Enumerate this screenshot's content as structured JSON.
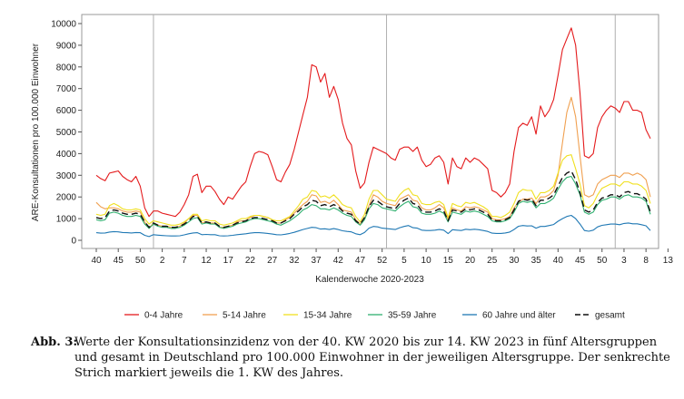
{
  "chart_data": {
    "type": "line",
    "ylabel": "ARE-Konsultationen pro 100.000 Einwohner",
    "xlabel": "Kalenderwoche 2020-2023",
    "ylim": [
      0,
      10000
    ],
    "yticks": [
      0,
      1000,
      2000,
      3000,
      4000,
      5000,
      6000,
      7000,
      8000,
      9000,
      10000
    ],
    "x_tick_labels": [
      "40",
      "45",
      "50",
      "2",
      "7",
      "12",
      "17",
      "22",
      "27",
      "32",
      "37",
      "42",
      "47",
      "52",
      "5",
      "10",
      "15",
      "20",
      "25",
      "30",
      "35",
      "40",
      "45",
      "50",
      "3",
      "8",
      "13"
    ],
    "x_tick_positions": [
      0,
      5,
      10,
      15,
      20,
      25,
      30,
      35,
      40,
      45,
      50,
      55,
      60,
      65,
      70,
      75,
      80,
      85,
      90,
      95,
      100,
      105,
      110,
      115,
      120,
      125,
      130
    ],
    "year_boundaries": [
      13,
      66,
      118
    ],
    "grid": false,
    "legend_position": "bottom",
    "series": [
      {
        "name": "0-4 Jahre",
        "color": "#e41a1c",
        "dash": "none",
        "values": [
          3000,
          2850,
          2750,
          3100,
          3150,
          3200,
          2950,
          2800,
          2700,
          2950,
          2500,
          1500,
          1100,
          1350,
          1350,
          1250,
          1200,
          1150,
          1100,
          1300,
          1650,
          2100,
          2950,
          3050,
          2200,
          2500,
          2500,
          2250,
          1900,
          1650,
          2000,
          1900,
          2200,
          2500,
          2700,
          3400,
          4000,
          4100,
          4050,
          3950,
          3400,
          2800,
          2700,
          3150,
          3500,
          4200,
          5000,
          5800,
          6600,
          8100,
          8000,
          7300,
          7700,
          6600,
          7100,
          6500,
          5400,
          4700,
          4400,
          3200,
          2400,
          2650,
          3600,
          4300,
          4200,
          4100,
          4000,
          3800,
          3700,
          4200,
          4300,
          4300,
          4100,
          4300,
          3700,
          3400,
          3500,
          3800,
          3900,
          3600,
          2600,
          3800,
          3400,
          3300,
          3800,
          3600,
          3800,
          3700,
          3500,
          3300,
          2300,
          2200,
          2000,
          2200,
          2600,
          4100,
          5200,
          5400,
          5300,
          5700,
          4900,
          6200,
          5700,
          6000,
          6500,
          7600,
          8800,
          9300,
          9800,
          9000,
          6800,
          3900,
          3800,
          4000,
          5200,
          5700,
          6000,
          6200,
          6100,
          5900,
          6400,
          6400,
          6000,
          6000,
          5900,
          5100,
          4700
        ]
      },
      {
        "name": "5-14 Jahre",
        "color": "#f0a050",
        "dash": "none",
        "values": [
          1750,
          1550,
          1450,
          1500,
          1500,
          1450,
          1350,
          1300,
          1300,
          1350,
          1300,
          850,
          550,
          800,
          700,
          650,
          650,
          600,
          600,
          650,
          800,
          1000,
          1150,
          1150,
          800,
          850,
          800,
          800,
          600,
          600,
          650,
          700,
          850,
          900,
          900,
          1050,
          1150,
          1150,
          1100,
          1050,
          950,
          800,
          800,
          950,
          1050,
          1250,
          1450,
          1650,
          1800,
          2100,
          2050,
          1750,
          1800,
          1700,
          1850,
          1650,
          1400,
          1350,
          1300,
          950,
          750,
          1000,
          1600,
          2100,
          2000,
          1800,
          1700,
          1650,
          1600,
          1900,
          2000,
          2100,
          1850,
          1800,
          1500,
          1400,
          1400,
          1500,
          1650,
          1500,
          950,
          1500,
          1400,
          1350,
          1550,
          1500,
          1550,
          1500,
          1400,
          1300,
          1000,
          950,
          950,
          1000,
          1100,
          1500,
          1750,
          1900,
          1900,
          1950,
          1700,
          2000,
          2000,
          2100,
          2300,
          3000,
          4500,
          5900,
          6600,
          5700,
          3900,
          2100,
          2000,
          2100,
          2600,
          2800,
          2900,
          3000,
          3000,
          2900,
          3100,
          3100,
          3000,
          3100,
          3000,
          2800,
          2000
        ]
      },
      {
        "name": "15-34 Jahre",
        "color": "#f0e020",
        "dash": "none",
        "values": [
          1200,
          1150,
          1200,
          1600,
          1700,
          1600,
          1450,
          1400,
          1400,
          1450,
          1400,
          1000,
          750,
          900,
          850,
          800,
          750,
          700,
          700,
          750,
          850,
          1000,
          1200,
          1200,
          900,
          950,
          900,
          900,
          750,
          700,
          750,
          800,
          900,
          1000,
          1000,
          1100,
          1150,
          1150,
          1100,
          1050,
          950,
          900,
          900,
          1000,
          1100,
          1350,
          1600,
          1900,
          2000,
          2300,
          2250,
          2000,
          2050,
          1950,
          2100,
          1900,
          1650,
          1550,
          1500,
          1100,
          850,
          1200,
          1900,
          2300,
          2300,
          2100,
          1900,
          1850,
          1800,
          2100,
          2300,
          2400,
          2100,
          2050,
          1700,
          1650,
          1650,
          1750,
          1800,
          1650,
          1050,
          1700,
          1600,
          1550,
          1750,
          1700,
          1750,
          1650,
          1550,
          1400,
          1100,
          1100,
          1050,
          1150,
          1300,
          1700,
          2200,
          2350,
          2300,
          2300,
          1900,
          2200,
          2200,
          2300,
          2500,
          3100,
          3700,
          3900,
          3950,
          3300,
          2600,
          1600,
          1500,
          1700,
          2100,
          2400,
          2500,
          2600,
          2600,
          2500,
          2700,
          2700,
          2600,
          2600,
          2500,
          2300,
          1700
        ]
      },
      {
        "name": "35-59 Jahre",
        "color": "#30b070",
        "dash": "none",
        "values": [
          950,
          900,
          950,
          1250,
          1300,
          1250,
          1150,
          1100,
          1100,
          1150,
          1100,
          750,
          550,
          750,
          650,
          600,
          600,
          550,
          550,
          600,
          700,
          850,
          1000,
          1050,
          750,
          800,
          750,
          750,
          600,
          550,
          600,
          650,
          750,
          800,
          850,
          950,
          1000,
          1000,
          950,
          900,
          850,
          750,
          700,
          800,
          900,
          1050,
          1200,
          1400,
          1500,
          1650,
          1600,
          1450,
          1450,
          1400,
          1500,
          1400,
          1250,
          1150,
          1100,
          850,
          700,
          950,
          1450,
          1700,
          1650,
          1500,
          1450,
          1400,
          1350,
          1550,
          1700,
          1800,
          1550,
          1500,
          1250,
          1200,
          1200,
          1250,
          1350,
          1250,
          850,
          1300,
          1250,
          1200,
          1350,
          1300,
          1350,
          1300,
          1200,
          1100,
          900,
          850,
          850,
          900,
          1000,
          1300,
          1700,
          1800,
          1750,
          1800,
          1500,
          1700,
          1700,
          1800,
          1950,
          2350,
          2700,
          2900,
          2950,
          2600,
          2100,
          1300,
          1200,
          1300,
          1650,
          1850,
          1900,
          2000,
          2000,
          1900,
          2050,
          2100,
          2000,
          2000,
          1950,
          1800,
          1200
        ]
      },
      {
        "name": "60 Jahre und älter",
        "color": "#1f78b4",
        "dash": "none",
        "values": [
          350,
          330,
          340,
          380,
          400,
          390,
          360,
          350,
          340,
          360,
          350,
          230,
          170,
          260,
          240,
          220,
          210,
          200,
          200,
          210,
          250,
          300,
          340,
          350,
          260,
          270,
          260,
          260,
          210,
          200,
          210,
          230,
          260,
          280,
          300,
          330,
          350,
          350,
          340,
          320,
          290,
          260,
          250,
          280,
          320,
          370,
          430,
          500,
          550,
          600,
          580,
          520,
          530,
          500,
          540,
          500,
          440,
          410,
          390,
          300,
          260,
          360,
          560,
          640,
          620,
          560,
          540,
          520,
          500,
          580,
          640,
          680,
          580,
          560,
          470,
          450,
          450,
          470,
          500,
          470,
          310,
          490,
          470,
          450,
          510,
          490,
          510,
          490,
          450,
          410,
          330,
          320,
          320,
          340,
          380,
          500,
          650,
          680,
          660,
          670,
          560,
          640,
          640,
          680,
          730,
          880,
          1000,
          1100,
          1150,
          1000,
          750,
          450,
          420,
          470,
          620,
          690,
          720,
          750,
          750,
          720,
          780,
          800,
          760,
          760,
          720,
          670,
          450
        ]
      },
      {
        "name": "gesamt",
        "color": "#111111",
        "dash": "7,4",
        "values": [
          1050,
          1000,
          1050,
          1350,
          1400,
          1350,
          1250,
          1200,
          1200,
          1250,
          1200,
          850,
          600,
          800,
          700,
          650,
          650,
          600,
          600,
          650,
          750,
          900,
          1100,
          1100,
          800,
          850,
          800,
          800,
          650,
          600,
          650,
          700,
          800,
          850,
          900,
          1000,
          1050,
          1050,
          1000,
          950,
          900,
          800,
          800,
          900,
          1000,
          1200,
          1350,
          1550,
          1650,
          1850,
          1800,
          1600,
          1650,
          1550,
          1650,
          1550,
          1350,
          1250,
          1200,
          900,
          750,
          1050,
          1550,
          1850,
          1800,
          1650,
          1550,
          1500,
          1450,
          1700,
          1850,
          1950,
          1700,
          1650,
          1350,
          1300,
          1300,
          1350,
          1450,
          1350,
          900,
          1400,
          1350,
          1300,
          1450,
          1400,
          1450,
          1400,
          1300,
          1200,
          950,
          900,
          900,
          950,
          1050,
          1400,
          1800,
          1900,
          1850,
          1900,
          1600,
          1850,
          1850,
          1950,
          2100,
          2500,
          2900,
          3100,
          3200,
          2800,
          2200,
          1400,
          1300,
          1400,
          1750,
          1950,
          2000,
          2100,
          2100,
          2000,
          2200,
          2250,
          2150,
          2150,
          2050,
          1900,
          1300
        ]
      }
    ]
  },
  "caption": {
    "label": "Abb. 3:",
    "text": "Werte der Konsultationsinzidenz von der 40. KW 2020 bis zur 14. KW 2023 in fünf Altersgruppen und gesamt in Deutschland pro 100.000 Einwohner in der jeweiligen Altersgruppe. Der senkrechte Strich markiert jeweils die 1. KW des Jahres."
  }
}
